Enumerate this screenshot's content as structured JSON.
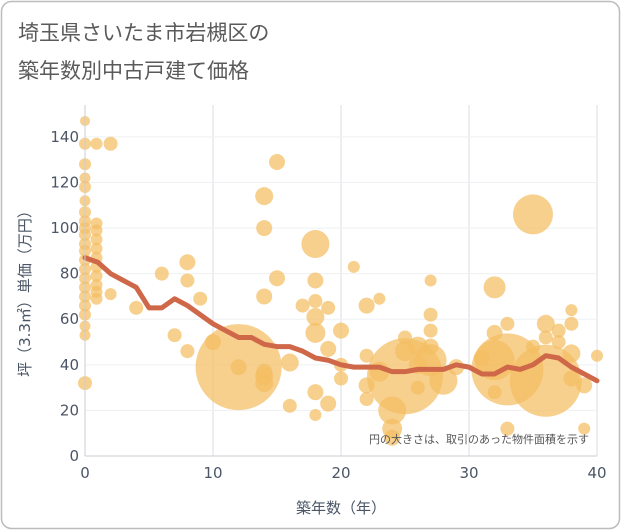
{
  "chart_data": {
    "type": "scatter",
    "title_lines": [
      "埼玉県さいたま市岩槻区の",
      "築年数別中古戸建て価格"
    ],
    "xlabel": "築年数（年）",
    "ylabel": "坪（3.3㎡）単価（万円）",
    "xlim": [
      0,
      40
    ],
    "ylim": [
      0,
      154
    ],
    "xticks": [
      0,
      10,
      20,
      30,
      40
    ],
    "yticks": [
      0,
      20,
      40,
      60,
      80,
      100,
      120,
      140
    ],
    "grid": true,
    "annotation": "円の大きさは、取引のあった物件面積を示す",
    "colors": {
      "bubble": "#F4BE62",
      "trend": "#CF6848",
      "grid": "#d9dde3",
      "frame": "#bcbcbc"
    },
    "points": [
      {
        "x": 0,
        "y": 147,
        "area": 25
      },
      {
        "x": 0,
        "y": 137,
        "area": 36
      },
      {
        "x": 0,
        "y": 128,
        "area": 36
      },
      {
        "x": 0,
        "y": 122,
        "area": 30
      },
      {
        "x": 0,
        "y": 118,
        "area": 36
      },
      {
        "x": 0,
        "y": 112,
        "area": 30
      },
      {
        "x": 0,
        "y": 107,
        "area": 36
      },
      {
        "x": 0,
        "y": 103,
        "area": 36
      },
      {
        "x": 0,
        "y": 100,
        "area": 36
      },
      {
        "x": 0,
        "y": 97,
        "area": 36
      },
      {
        "x": 0,
        "y": 93,
        "area": 36
      },
      {
        "x": 0,
        "y": 90,
        "area": 36
      },
      {
        "x": 0,
        "y": 86,
        "area": 36
      },
      {
        "x": 0,
        "y": 82,
        "area": 36
      },
      {
        "x": 0,
        "y": 78,
        "area": 36
      },
      {
        "x": 0,
        "y": 74,
        "area": 36
      },
      {
        "x": 0,
        "y": 70,
        "area": 36
      },
      {
        "x": 0,
        "y": 66,
        "area": 36
      },
      {
        "x": 0,
        "y": 62,
        "area": 36
      },
      {
        "x": 0,
        "y": 57,
        "area": 30
      },
      {
        "x": 0,
        "y": 53,
        "area": 30
      },
      {
        "x": 0,
        "y": 32,
        "area": 49
      },
      {
        "x": 0.9,
        "y": 137,
        "area": 36
      },
      {
        "x": 0.9,
        "y": 102,
        "area": 36
      },
      {
        "x": 0.9,
        "y": 99,
        "area": 36
      },
      {
        "x": 0.9,
        "y": 95,
        "area": 36
      },
      {
        "x": 0.9,
        "y": 91,
        "area": 36
      },
      {
        "x": 0.9,
        "y": 87,
        "area": 36
      },
      {
        "x": 0.9,
        "y": 83,
        "area": 36
      },
      {
        "x": 0.9,
        "y": 79,
        "area": 36
      },
      {
        "x": 0.9,
        "y": 75,
        "area": 36
      },
      {
        "x": 0.9,
        "y": 72,
        "area": 36
      },
      {
        "x": 0.9,
        "y": 69,
        "area": 36
      },
      {
        "x": 2,
        "y": 137,
        "area": 49
      },
      {
        "x": 2,
        "y": 71,
        "area": 36
      },
      {
        "x": 4,
        "y": 65,
        "area": 49
      },
      {
        "x": 6,
        "y": 80,
        "area": 49
      },
      {
        "x": 7,
        "y": 53,
        "area": 49
      },
      {
        "x": 8,
        "y": 85,
        "area": 64
      },
      {
        "x": 8,
        "y": 77,
        "area": 49
      },
      {
        "x": 8,
        "y": 46,
        "area": 49
      },
      {
        "x": 9,
        "y": 69,
        "area": 49
      },
      {
        "x": 10,
        "y": 50,
        "area": 64
      },
      {
        "x": 12,
        "y": 39,
        "area": 1849
      },
      {
        "x": 12,
        "y": 39,
        "area": 64
      },
      {
        "x": 14,
        "y": 114,
        "area": 81
      },
      {
        "x": 14,
        "y": 100,
        "area": 64
      },
      {
        "x": 14,
        "y": 70,
        "area": 64
      },
      {
        "x": 14,
        "y": 35,
        "area": 81
      },
      {
        "x": 14,
        "y": 32,
        "area": 81
      },
      {
        "x": 14,
        "y": 37,
        "area": 64
      },
      {
        "x": 15,
        "y": 129,
        "area": 64
      },
      {
        "x": 15,
        "y": 78,
        "area": 64
      },
      {
        "x": 16,
        "y": 41,
        "area": 81
      },
      {
        "x": 16,
        "y": 22,
        "area": 49
      },
      {
        "x": 17,
        "y": 66,
        "area": 49
      },
      {
        "x": 18,
        "y": 93,
        "area": 196
      },
      {
        "x": 18,
        "y": 77,
        "area": 64
      },
      {
        "x": 18,
        "y": 68,
        "area": 49
      },
      {
        "x": 18,
        "y": 61,
        "area": 81
      },
      {
        "x": 18,
        "y": 54,
        "area": 100
      },
      {
        "x": 18,
        "y": 28,
        "area": 64
      },
      {
        "x": 18,
        "y": 18,
        "area": 36
      },
      {
        "x": 19,
        "y": 65,
        "area": 49
      },
      {
        "x": 19,
        "y": 47,
        "area": 64
      },
      {
        "x": 19,
        "y": 23,
        "area": 64
      },
      {
        "x": 20,
        "y": 55,
        "area": 64
      },
      {
        "x": 20,
        "y": 40,
        "area": 49
      },
      {
        "x": 20,
        "y": 34,
        "area": 49
      },
      {
        "x": 21,
        "y": 83,
        "area": 36
      },
      {
        "x": 22,
        "y": 66,
        "area": 64
      },
      {
        "x": 22,
        "y": 44,
        "area": 49
      },
      {
        "x": 22,
        "y": 31,
        "area": 64
      },
      {
        "x": 22,
        "y": 25,
        "area": 49
      },
      {
        "x": 23,
        "y": 69,
        "area": 36
      },
      {
        "x": 23,
        "y": 37,
        "area": 100
      },
      {
        "x": 24,
        "y": 20,
        "area": 196
      },
      {
        "x": 24,
        "y": 12,
        "area": 100
      },
      {
        "x": 24,
        "y": 8,
        "area": 64
      },
      {
        "x": 25,
        "y": 35,
        "area": 1444
      },
      {
        "x": 25,
        "y": 46,
        "area": 100
      },
      {
        "x": 25,
        "y": 52,
        "area": 49
      },
      {
        "x": 26,
        "y": 48,
        "area": 100
      },
      {
        "x": 26,
        "y": 40,
        "area": 81
      },
      {
        "x": 26,
        "y": 30,
        "area": 49
      },
      {
        "x": 27,
        "y": 77,
        "area": 36
      },
      {
        "x": 27,
        "y": 62,
        "area": 49
      },
      {
        "x": 27,
        "y": 55,
        "area": 49
      },
      {
        "x": 27,
        "y": 48,
        "area": 64
      },
      {
        "x": 27,
        "y": 42,
        "area": 256
      },
      {
        "x": 28,
        "y": 33,
        "area": 196
      },
      {
        "x": 29,
        "y": 39,
        "area": 64
      },
      {
        "x": 31,
        "y": 43,
        "area": 64
      },
      {
        "x": 32,
        "y": 74,
        "area": 121
      },
      {
        "x": 32,
        "y": 54,
        "area": 64
      },
      {
        "x": 32,
        "y": 42,
        "area": 400
      },
      {
        "x": 32,
        "y": 28,
        "area": 49
      },
      {
        "x": 33,
        "y": 38,
        "area": 1296
      },
      {
        "x": 33,
        "y": 58,
        "area": 49
      },
      {
        "x": 33,
        "y": 12,
        "area": 49
      },
      {
        "x": 35,
        "y": 106,
        "area": 400
      },
      {
        "x": 35,
        "y": 48,
        "area": 49
      },
      {
        "x": 36,
        "y": 33,
        "area": 1296
      },
      {
        "x": 36,
        "y": 58,
        "area": 81
      },
      {
        "x": 36,
        "y": 52,
        "area": 49
      },
      {
        "x": 37,
        "y": 50,
        "area": 49
      },
      {
        "x": 37,
        "y": 55,
        "area": 49
      },
      {
        "x": 38,
        "y": 64,
        "area": 36
      },
      {
        "x": 38,
        "y": 45,
        "area": 81
      },
      {
        "x": 38,
        "y": 58,
        "area": 49
      },
      {
        "x": 38,
        "y": 34,
        "area": 64
      },
      {
        "x": 39,
        "y": 31,
        "area": 64
      },
      {
        "x": 39,
        "y": 12,
        "area": 36
      },
      {
        "x": 40,
        "y": 44,
        "area": 36
      }
    ],
    "trend": {
      "x": [
        0,
        1,
        2,
        3,
        4,
        5,
        6,
        7,
        8,
        9,
        10,
        11,
        12,
        13,
        14,
        15,
        16,
        17,
        18,
        19,
        20,
        21,
        22,
        23,
        24,
        25,
        26,
        27,
        28,
        29,
        30,
        31,
        32,
        33,
        34,
        35,
        36,
        37,
        38,
        39,
        40
      ],
      "y": [
        87,
        85,
        80,
        77,
        74,
        65,
        65,
        69,
        66,
        62,
        58,
        55,
        52,
        52,
        49,
        48,
        48,
        46,
        43,
        42,
        40,
        39,
        39,
        39,
        37,
        37,
        38,
        38,
        38,
        40,
        39,
        36,
        36,
        39,
        38,
        40,
        44,
        43,
        39,
        36,
        33
      ]
    }
  }
}
